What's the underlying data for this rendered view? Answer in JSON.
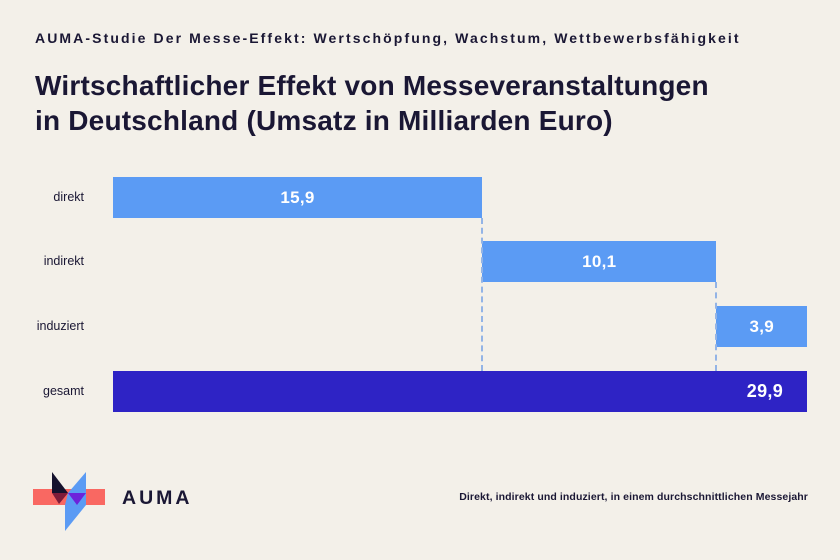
{
  "page": {
    "background": "#f3f0e9",
    "text_color": "#1a1734"
  },
  "header": {
    "eyebrow": "AUMA-Studie Der Messe-Effekt: Wertschöpfung, Wachstum, Wettbewerbsfähigkeit",
    "title_line1": "Wirtschaftlicher Effekt von Messeveranstaltungen",
    "title_line2": "in Deutschland (Umsatz in Milliarden Euro)"
  },
  "chart_data": {
    "type": "bar",
    "orientation": "horizontal",
    "variant": "waterfall",
    "title": "Wirtschaftlicher Effekt von Messeveranstaltungen in Deutschland (Umsatz in Milliarden Euro)",
    "categories": [
      "direkt",
      "indirekt",
      "induziert",
      "gesamt"
    ],
    "values": [
      15.9,
      10.1,
      3.9,
      29.9
    ],
    "value_labels": [
      "15,9",
      "10,1",
      "3,9",
      "29,9"
    ],
    "total_category": "gesamt",
    "unit": "Milliarden Euro",
    "xlim": [
      0,
      29.9
    ],
    "grid": false,
    "legend": false,
    "bar_color": "#5b9bf4",
    "total_bar_color": "#2e23c5",
    "value_text_color": "#ffffff",
    "connector_color": "#93b4e6"
  },
  "footer": {
    "logo_text": "AUMA",
    "note": "Direkt, indirekt und induziert, in einem durchschnittlichen Messejahr",
    "logo_colors": {
      "red": "#f96862",
      "blue": "#5b9bf4",
      "navy": "#15122d",
      "maroon": "#7e1c39",
      "purple": "#6d23db"
    }
  }
}
